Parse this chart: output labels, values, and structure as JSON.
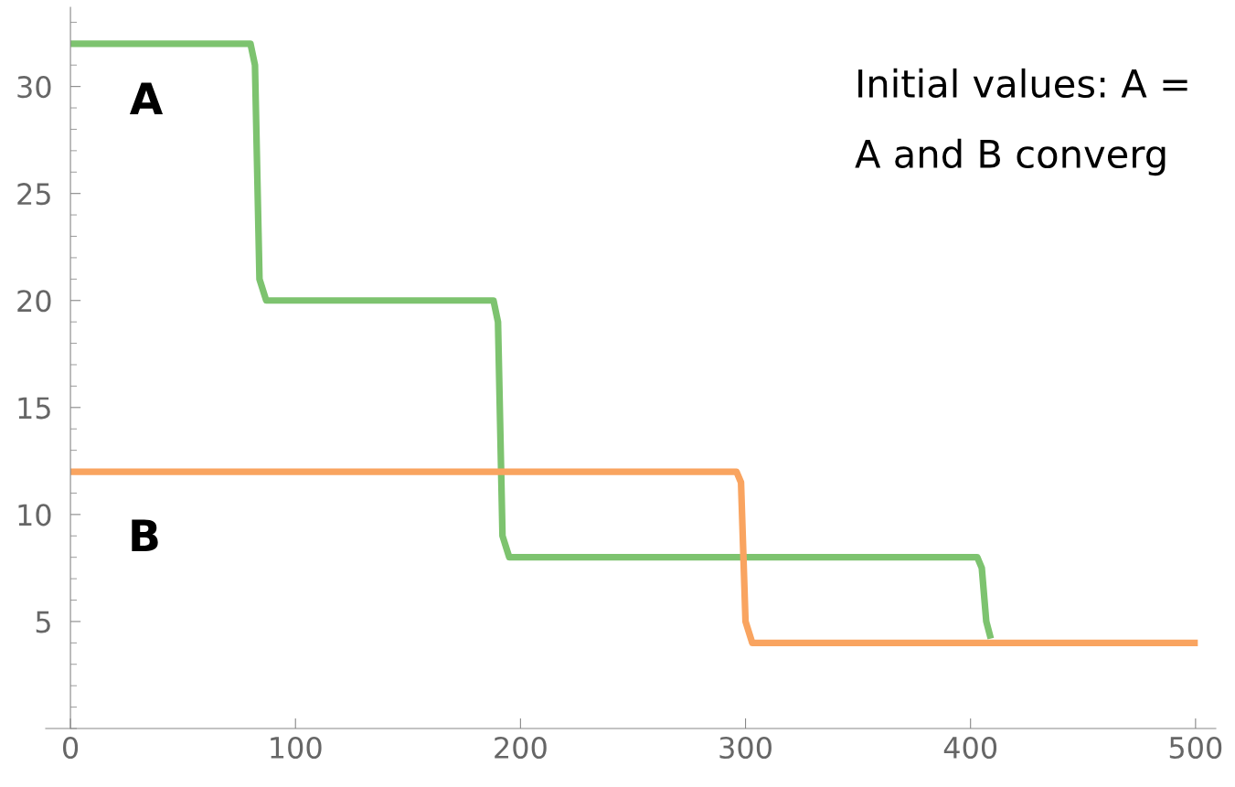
{
  "chart_data": {
    "type": "line",
    "xlim": [
      -11,
      509
    ],
    "ylim": [
      0,
      33.7
    ],
    "xticks": [
      0,
      100,
      200,
      300,
      400,
      500
    ],
    "yticks": [
      5,
      10,
      15,
      20,
      25,
      30
    ],
    "grid": false,
    "marker": "none",
    "line_style": "solid",
    "series": [
      {
        "color": "#7dc36f",
        "x": [
          0,
          80,
          82,
          84,
          87,
          188,
          190,
          192,
          195,
          403,
          405,
          407,
          409
        ],
        "values": [
          32,
          32,
          31,
          21,
          20,
          20,
          19,
          9,
          8,
          8,
          7.5,
          5,
          4.2
        ]
      },
      {
        "color": "#f9a460",
        "x": [
          0,
          296,
          298,
          300,
          303,
          501
        ],
        "values": [
          12,
          12,
          11.5,
          5,
          4,
          4
        ]
      }
    ],
    "annotations": [
      "A",
      "B",
      "Initial values: A =",
      "A and B converg"
    ]
  }
}
